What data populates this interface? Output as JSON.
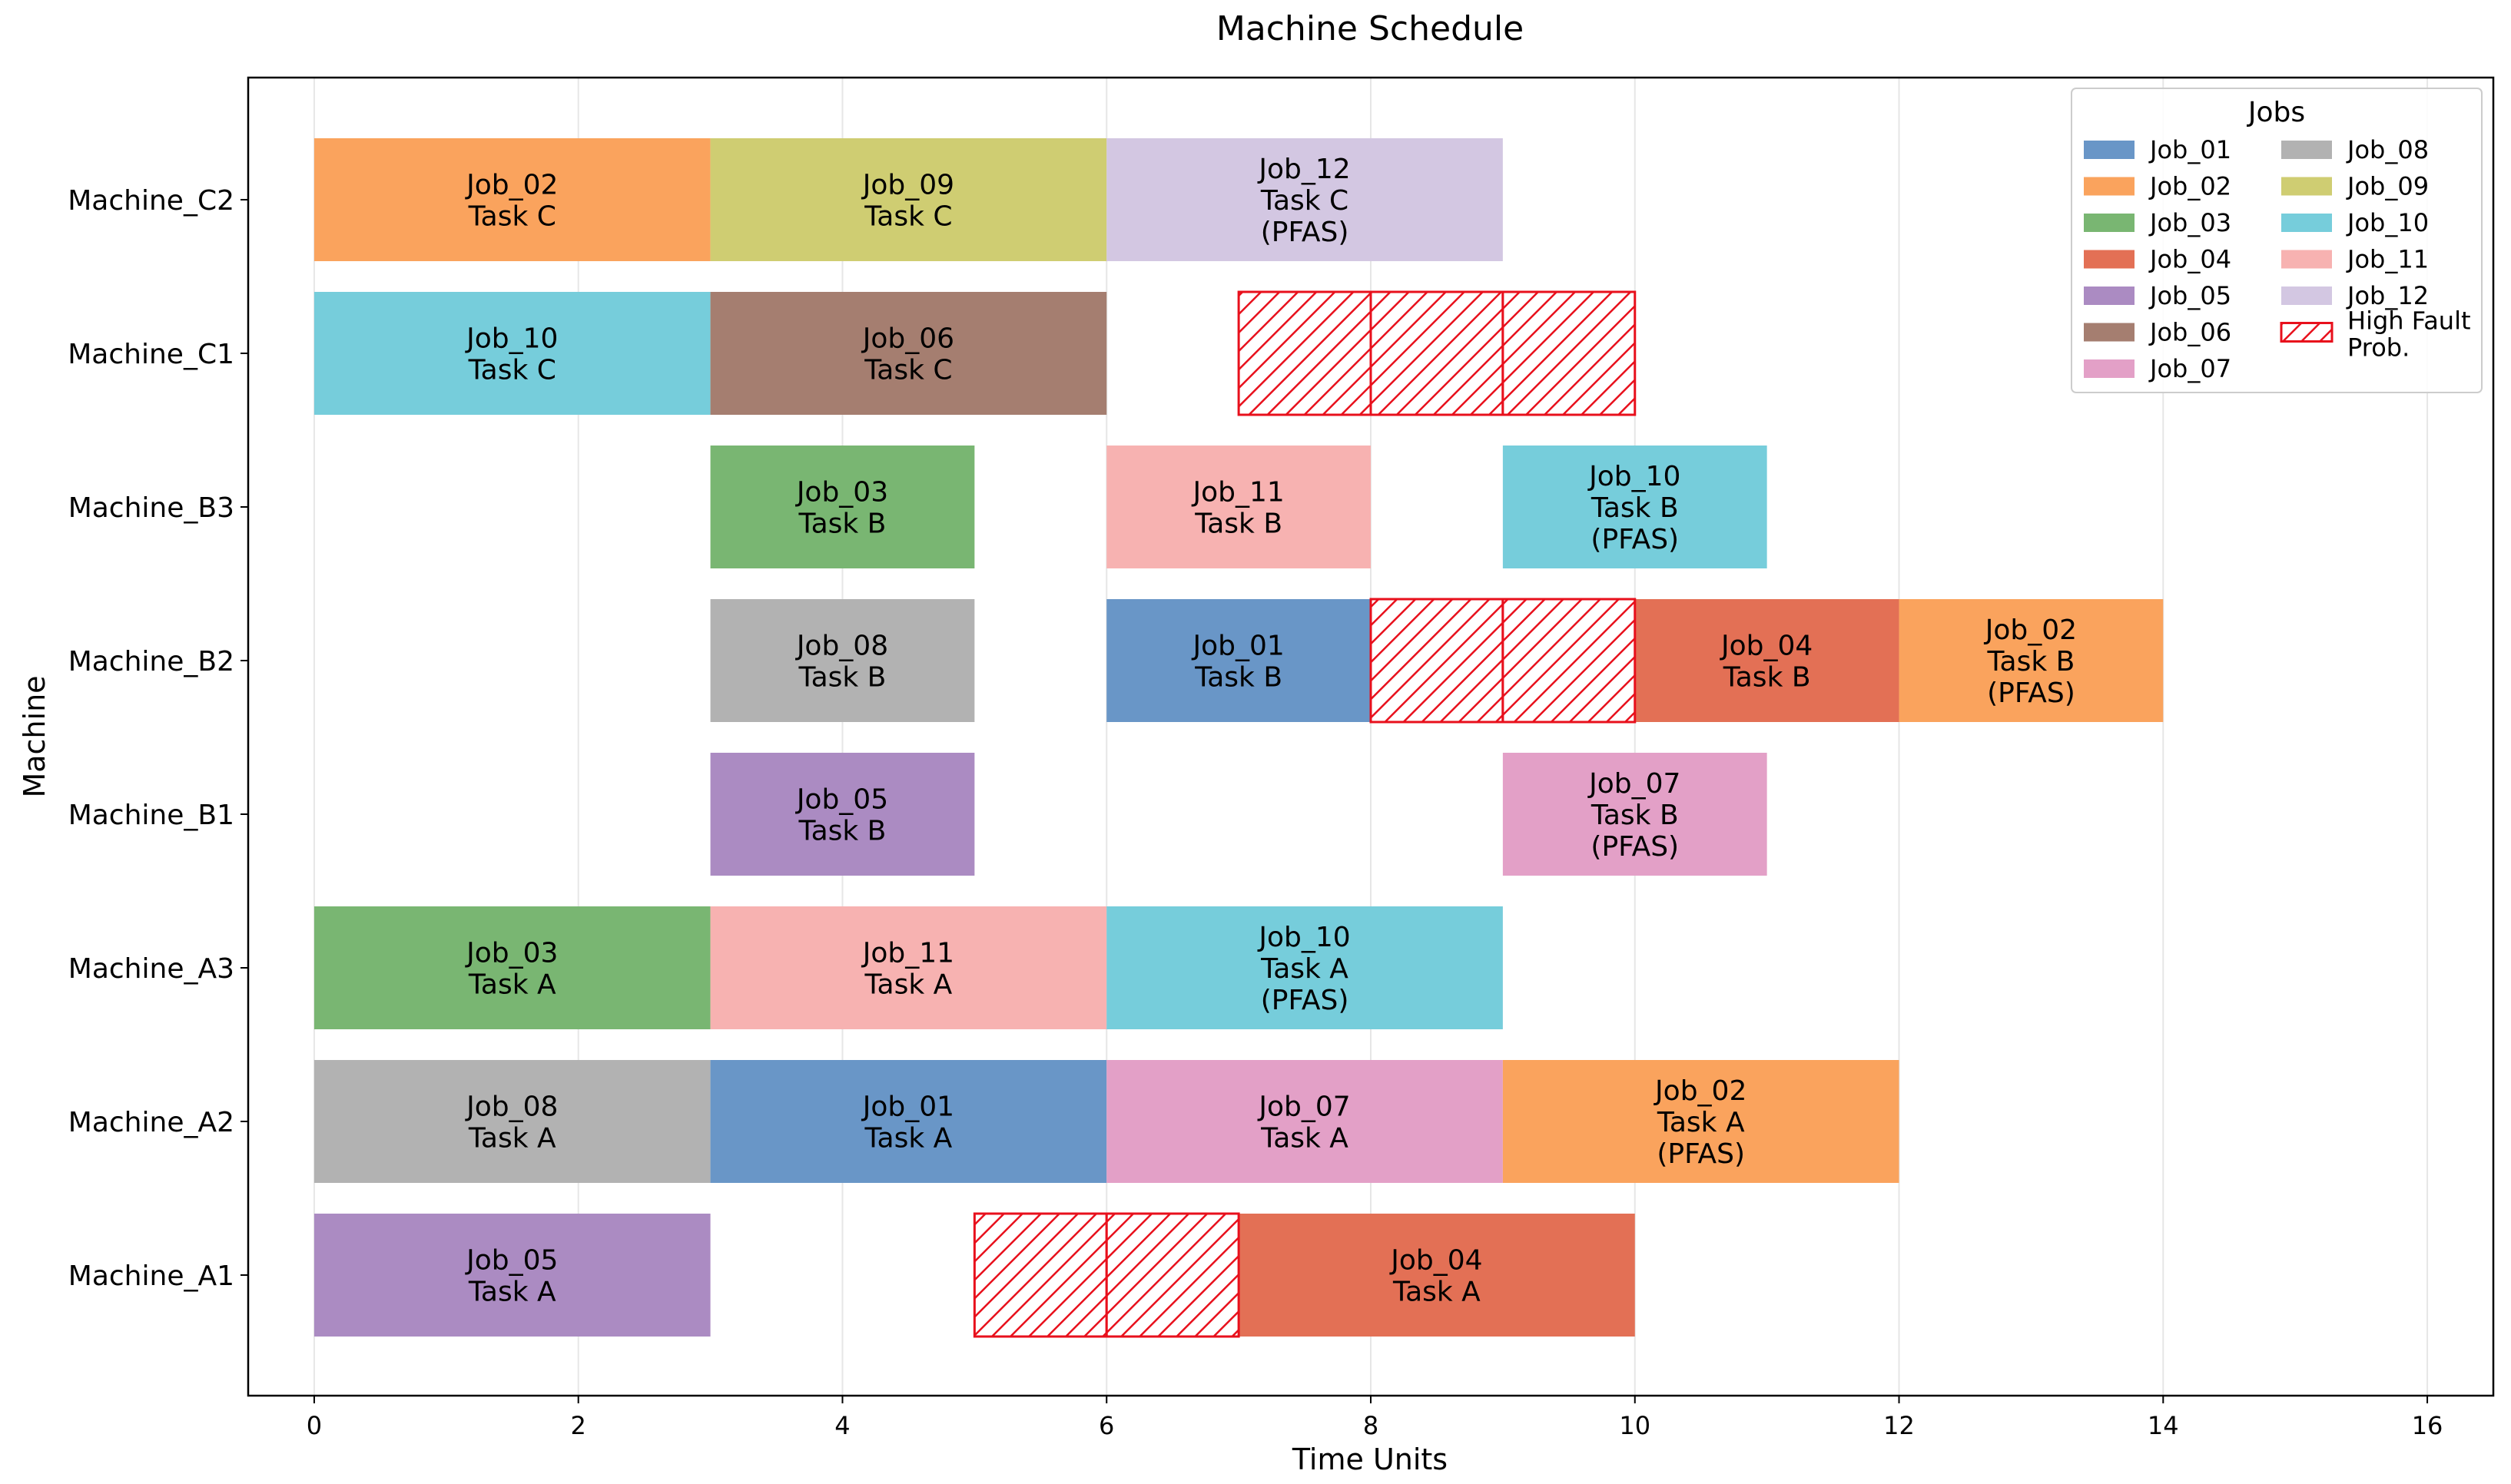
{
  "chart_data": {
    "type": "gantt",
    "title": "Machine Schedule",
    "xlabel": "Time Units",
    "ylabel": "Machine",
    "xlim": [
      -0.5,
      16.5
    ],
    "xticks": [
      0,
      2,
      4,
      6,
      8,
      10,
      12,
      14,
      16
    ],
    "grid": "x",
    "machines": [
      "Machine_A1",
      "Machine_A2",
      "Machine_A3",
      "Machine_B1",
      "Machine_B2",
      "Machine_B3",
      "Machine_C1",
      "Machine_C2"
    ],
    "tasks": [
      {
        "machine": "Machine_A1",
        "job": "Job_05",
        "task": "Task A",
        "start": 0,
        "end": 3,
        "pfas": false
      },
      {
        "machine": "Machine_A1",
        "job": "Job_04",
        "task": "Task A",
        "start": 7,
        "end": 10,
        "pfas": false
      },
      {
        "machine": "Machine_A2",
        "job": "Job_08",
        "task": "Task A",
        "start": 0,
        "end": 3,
        "pfas": false
      },
      {
        "machine": "Machine_A2",
        "job": "Job_01",
        "task": "Task A",
        "start": 3,
        "end": 6,
        "pfas": false
      },
      {
        "machine": "Machine_A2",
        "job": "Job_07",
        "task": "Task A",
        "start": 6,
        "end": 9,
        "pfas": false
      },
      {
        "machine": "Machine_A2",
        "job": "Job_02",
        "task": "Task A",
        "start": 9,
        "end": 12,
        "pfas": true
      },
      {
        "machine": "Machine_A3",
        "job": "Job_03",
        "task": "Task A",
        "start": 0,
        "end": 3,
        "pfas": false
      },
      {
        "machine": "Machine_A3",
        "job": "Job_11",
        "task": "Task A",
        "start": 3,
        "end": 6,
        "pfas": false
      },
      {
        "machine": "Machine_A3",
        "job": "Job_10",
        "task": "Task A",
        "start": 6,
        "end": 9,
        "pfas": true
      },
      {
        "machine": "Machine_B1",
        "job": "Job_05",
        "task": "Task B",
        "start": 3,
        "end": 5,
        "pfas": false
      },
      {
        "machine": "Machine_B1",
        "job": "Job_07",
        "task": "Task B",
        "start": 9,
        "end": 11,
        "pfas": true
      },
      {
        "machine": "Machine_B2",
        "job": "Job_08",
        "task": "Task B",
        "start": 3,
        "end": 5,
        "pfas": false
      },
      {
        "machine": "Machine_B2",
        "job": "Job_01",
        "task": "Task B",
        "start": 6,
        "end": 8,
        "pfas": false
      },
      {
        "machine": "Machine_B2",
        "job": "Job_04",
        "task": "Task B",
        "start": 10,
        "end": 12,
        "pfas": false
      },
      {
        "machine": "Machine_B2",
        "job": "Job_02",
        "task": "Task B",
        "start": 12,
        "end": 14,
        "pfas": true
      },
      {
        "machine": "Machine_B3",
        "job": "Job_03",
        "task": "Task B",
        "start": 3,
        "end": 5,
        "pfas": false
      },
      {
        "machine": "Machine_B3",
        "job": "Job_11",
        "task": "Task B",
        "start": 6,
        "end": 8,
        "pfas": false
      },
      {
        "machine": "Machine_B3",
        "job": "Job_10",
        "task": "Task B",
        "start": 9,
        "end": 11,
        "pfas": true
      },
      {
        "machine": "Machine_C1",
        "job": "Job_10",
        "task": "Task C",
        "start": 0,
        "end": 3,
        "pfas": false
      },
      {
        "machine": "Machine_C1",
        "job": "Job_06",
        "task": "Task C",
        "start": 3,
        "end": 6,
        "pfas": false
      },
      {
        "machine": "Machine_C2",
        "job": "Job_02",
        "task": "Task C",
        "start": 0,
        "end": 3,
        "pfas": false
      },
      {
        "machine": "Machine_C2",
        "job": "Job_09",
        "task": "Task C",
        "start": 3,
        "end": 6,
        "pfas": false
      },
      {
        "machine": "Machine_C2",
        "job": "Job_12",
        "task": "Task C",
        "start": 6,
        "end": 9,
        "pfas": true
      }
    ],
    "high_fault": [
      {
        "machine": "Machine_A1",
        "start": 5,
        "end": 6
      },
      {
        "machine": "Machine_A1",
        "start": 6,
        "end": 7
      },
      {
        "machine": "Machine_B2",
        "start": 8,
        "end": 9
      },
      {
        "machine": "Machine_B2",
        "start": 9,
        "end": 10
      },
      {
        "machine": "Machine_C1",
        "start": 7,
        "end": 8
      },
      {
        "machine": "Machine_C1",
        "start": 8,
        "end": 9
      },
      {
        "machine": "Machine_C1",
        "start": 9,
        "end": 10
      }
    ],
    "pfas_label": "(PFAS)",
    "legend": {
      "title": "Jobs",
      "position": "top-right",
      "jobs": [
        "Job_01",
        "Job_02",
        "Job_03",
        "Job_04",
        "Job_05",
        "Job_06",
        "Job_07",
        "Job_08",
        "Job_09",
        "Job_10",
        "Job_11",
        "Job_12"
      ],
      "fault_label": [
        "High Fault",
        "Prob."
      ]
    },
    "colors": {
      "Job_01": "#6996c7",
      "Job_02": "#faa35d",
      "Job_03": "#79b672",
      "Job_04": "#e37055",
      "Job_05": "#ab8bc2",
      "Job_06": "#a57e70",
      "Job_07": "#e3a0c7",
      "Job_08": "#b2b2b2",
      "Job_09": "#cfcd72",
      "Job_10": "#76cddb",
      "Job_11": "#f7b2b1",
      "Job_12": "#d3c7e2",
      "fault": "#e8101c",
      "grid": "#e6e6e6"
    }
  }
}
